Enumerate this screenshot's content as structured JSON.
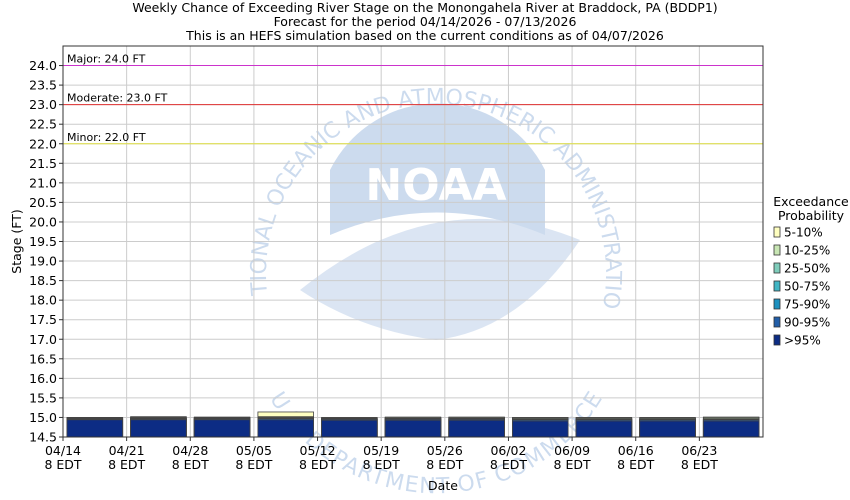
{
  "header": {
    "title": "Weekly Chance of Exceeding River Stage on the Monongahela River at Braddock, PA (BDDP1)",
    "subtitle": "Forecast for the period 04/14/2026 - 07/13/2026",
    "note": "This is an HEFS simulation based on the current conditions as of 04/07/2026"
  },
  "watermark": {
    "agency_ring": "NATIONAL OCEANIC AND ATMOSPHERIC ADMINISTRATION",
    "department_ring": "U.S. DEPARTMENT OF COMMERCE",
    "logo_text": "NOAA"
  },
  "chart_data": {
    "type": "bar",
    "title": "Weekly Chance of Exceeding River Stage on the Monongahela River at Braddock, PA (BDDP1)",
    "xlabel": "Date",
    "ylabel": "Stage (FT)",
    "ylim": [
      14.5,
      24.5
    ],
    "yticks": [
      "14.5",
      "15.0",
      "15.5",
      "16.0",
      "16.5",
      "17.0",
      "17.5",
      "18.0",
      "18.5",
      "19.0",
      "19.5",
      "20.0",
      "20.5",
      "21.0",
      "21.5",
      "22.0",
      "22.5",
      "23.0",
      "23.5",
      "24.0"
    ],
    "categories": [
      "04/14",
      "04/21",
      "04/28",
      "05/05",
      "05/12",
      "05/19",
      "05/26",
      "06/02",
      "06/09",
      "06/16",
      "06/23"
    ],
    "category_sublabel": "8 EDT",
    "grid": true,
    "thresholds": [
      {
        "label": "Major: 24.0 FT",
        "value": 24.0,
        "color": "#cc33cc"
      },
      {
        "label": "Moderate: 23.0 FT",
        "value": 23.0,
        "color": "#e03030"
      },
      {
        "label": "Minor: 22.0 FT",
        "value": 22.0,
        "color": "#e0e040"
      }
    ],
    "legend": {
      "title_lines": [
        "Exceedance",
        "Probability"
      ],
      "placement": "right",
      "items": [
        {
          "label": "5-10%",
          "color": "#ffffc0"
        },
        {
          "label": "10-25%",
          "color": "#c8e6b4"
        },
        {
          "label": "25-50%",
          "color": "#7fcdbb"
        },
        {
          "label": "50-75%",
          "color": "#41b6c4"
        },
        {
          "label": "75-90%",
          "color": "#1d91c0"
        },
        {
          "label": "90-95%",
          "color": "#225ea8"
        },
        {
          "label": ">95%",
          "color": "#0c2c84"
        }
      ]
    },
    "series": [
      {
        "name": ">95%",
        "tops": [
          14.94,
          14.94,
          14.94,
          14.94,
          14.93,
          14.93,
          14.93,
          14.91,
          14.91,
          14.91,
          14.91
        ]
      },
      {
        "name": "90-95%",
        "tops": [
          14.95,
          14.96,
          14.96,
          14.97,
          14.95,
          14.95,
          14.95,
          14.94,
          14.94,
          14.94,
          14.94
        ]
      },
      {
        "name": "75-90%",
        "tops": [
          14.97,
          14.97,
          14.97,
          14.98,
          14.96,
          14.96,
          14.96,
          14.95,
          14.95,
          14.95,
          14.95
        ]
      },
      {
        "name": "50-75%",
        "tops": [
          14.98,
          14.98,
          14.98,
          14.99,
          14.97,
          14.97,
          14.97,
          14.96,
          14.96,
          14.96,
          14.96
        ]
      },
      {
        "name": "25-50%",
        "tops": [
          14.99,
          14.99,
          14.99,
          15.0,
          14.98,
          14.98,
          14.98,
          14.97,
          14.97,
          14.97,
          14.97
        ]
      },
      {
        "name": "10-25%",
        "tops": [
          15.0,
          15.01,
          15.0,
          15.02,
          14.99,
          15.0,
          15.0,
          14.99,
          14.99,
          14.99,
          15.0
        ]
      },
      {
        "name": "5-10%",
        "tops": [
          15.0,
          15.02,
          15.01,
          15.14,
          15.0,
          15.01,
          15.01,
          15.0,
          15.0,
          15.0,
          15.01
        ]
      }
    ]
  }
}
